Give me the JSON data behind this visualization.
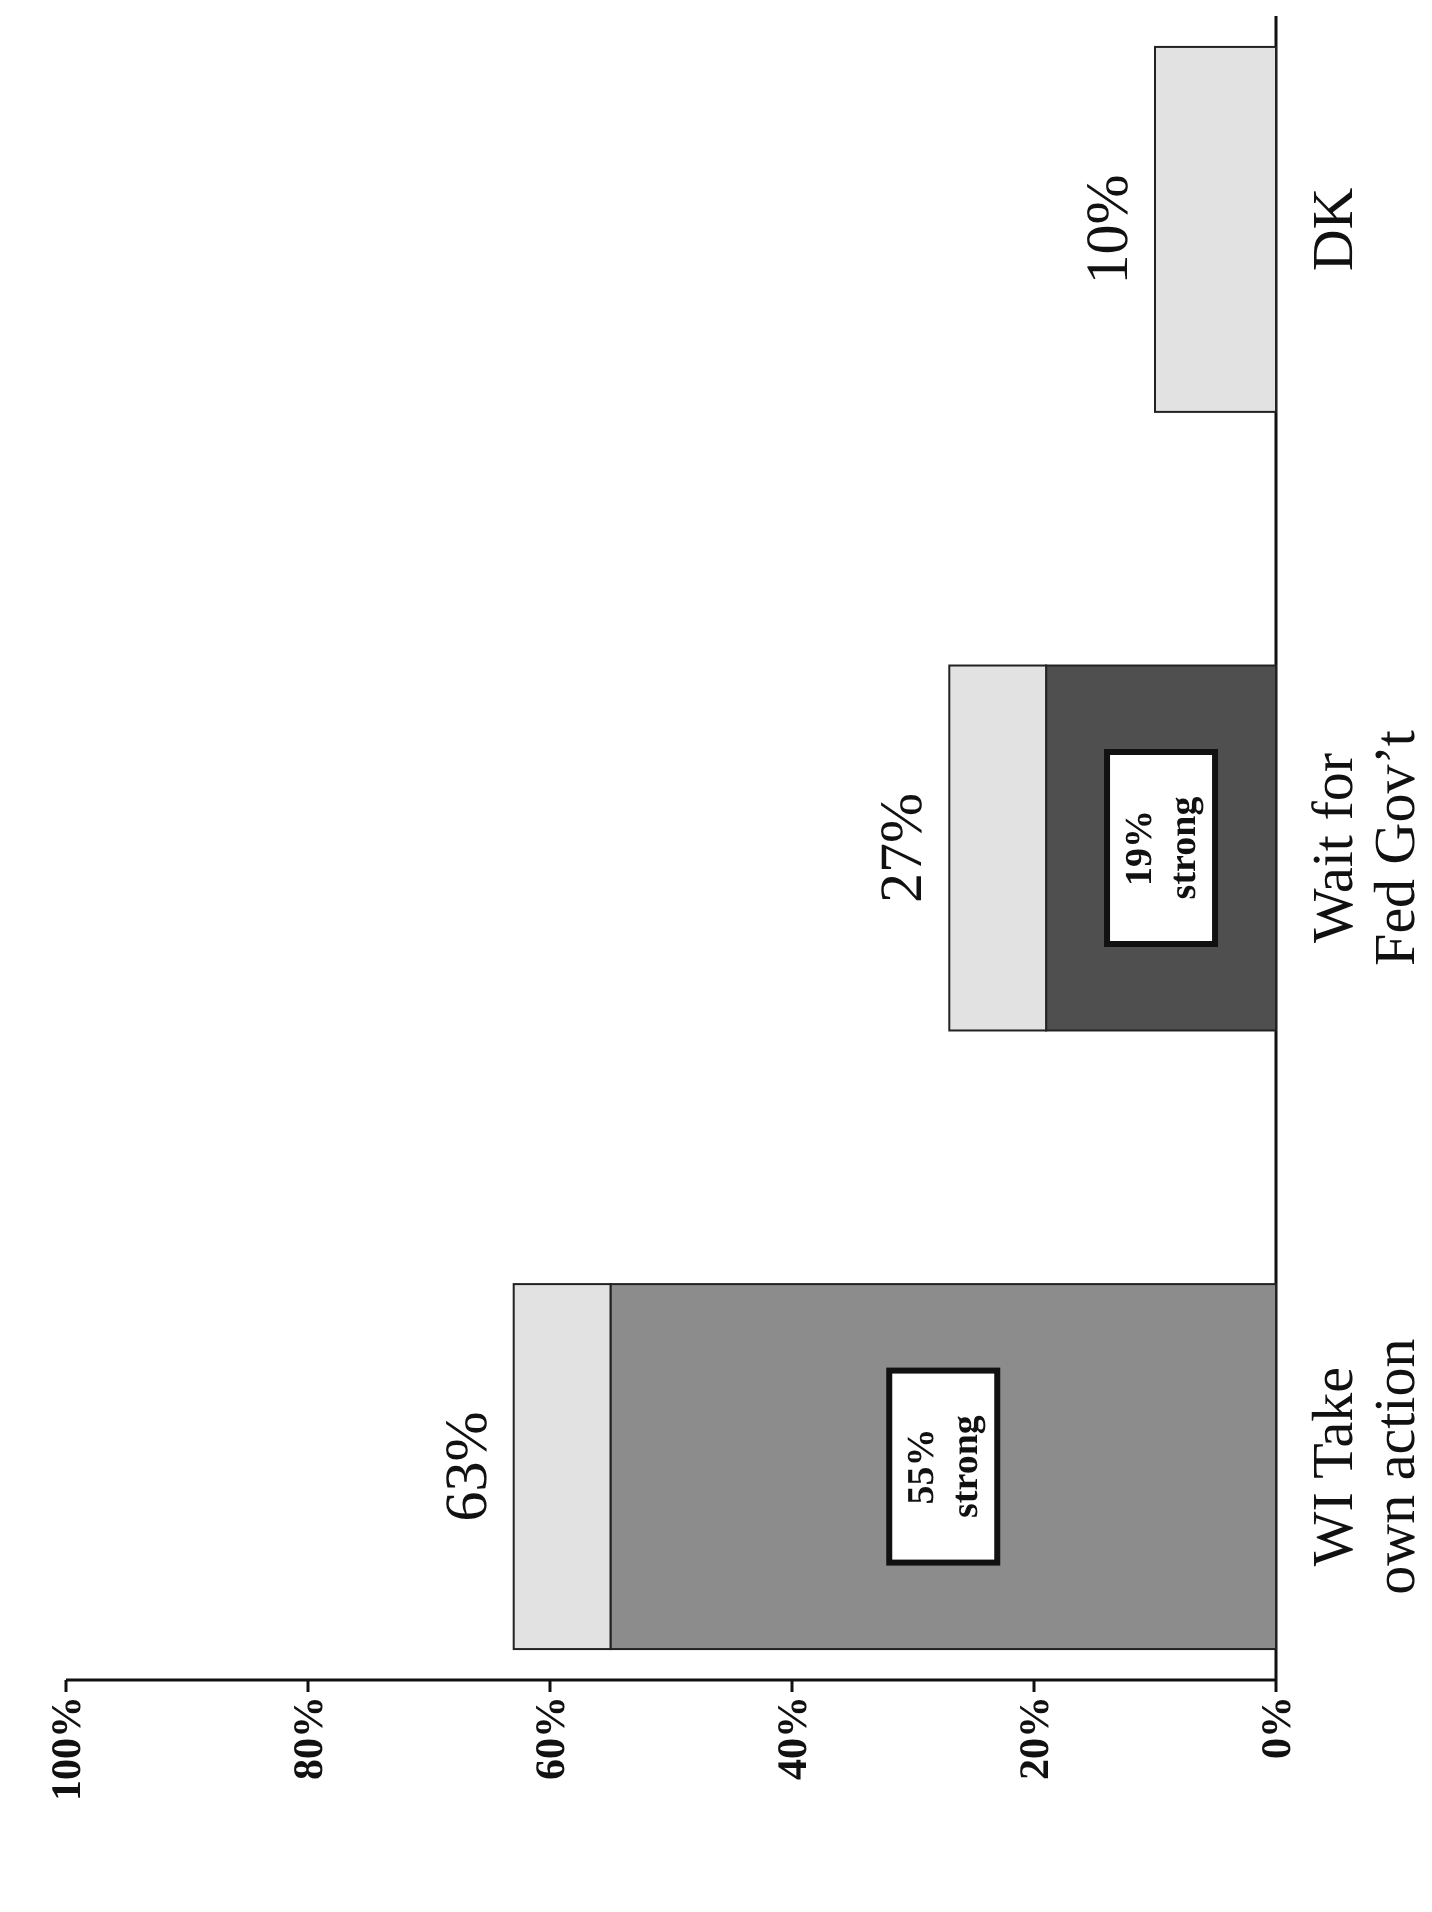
{
  "chart_data": {
    "type": "bar",
    "stacked": true,
    "orientation": "horizontal",
    "categories": [
      "DK",
      "Wait for Fed Gov’t",
      "WI Take own action"
    ],
    "series": [
      {
        "colors": [
          null,
          "#4f4f4f",
          "#8c8c8c"
        ],
        "values": [
          null,
          19,
          55
        ],
        "value_labels": [
          null,
          "19% strong",
          "55% strong"
        ]
      },
      {
        "color": "#e2e2e2",
        "values": [
          10,
          8,
          8
        ]
      }
    ],
    "totals": [
      "10%",
      "27%",
      "63%"
    ],
    "xlim": [
      100,
      0
    ],
    "xticks": [
      {
        "value": 100,
        "label": "100%"
      },
      {
        "value": 80,
        "label": "80%"
      },
      {
        "value": 60,
        "label": "60%"
      },
      {
        "value": 40,
        "label": "40%"
      },
      {
        "value": 20,
        "label": "20%"
      },
      {
        "value": 0,
        "label": "0%"
      }
    ]
  }
}
